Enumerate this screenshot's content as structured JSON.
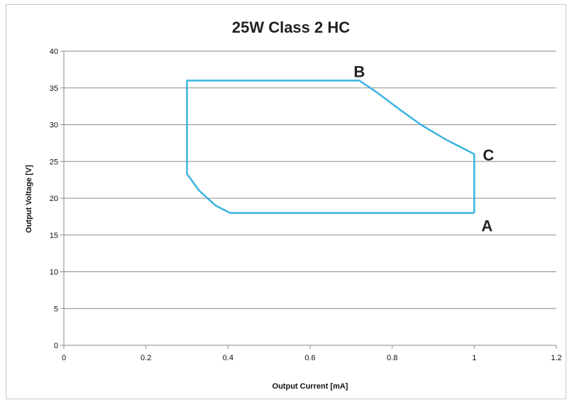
{
  "chart_data": {
    "type": "line",
    "title": "25W Class 2 HC",
    "xlabel": "Output Current [mA]",
    "ylabel": "Output Voltage [V]",
    "xlim": [
      0,
      1.2
    ],
    "ylim": [
      0,
      40
    ],
    "x_ticks": [
      "0",
      "0.2",
      "0.4",
      "0.6",
      "0.8",
      "1",
      "1.2"
    ],
    "y_ticks": [
      "0",
      "5",
      "10",
      "15",
      "20",
      "25",
      "30",
      "35",
      "40"
    ],
    "grid": "horizontal",
    "series": [
      {
        "color": "#3ab4e0",
        "points": [
          [
            1.0,
            18
          ],
          [
            1.0,
            26
          ],
          [
            0.93,
            28
          ],
          [
            0.87,
            30
          ],
          [
            0.82,
            32
          ],
          [
            0.76,
            34.5
          ],
          [
            0.72,
            36
          ],
          [
            0.3,
            36
          ],
          [
            0.3,
            23.3
          ],
          [
            0.33,
            21
          ],
          [
            0.37,
            19
          ],
          [
            0.405,
            18
          ],
          [
            1.0,
            18
          ]
        ]
      }
    ],
    "annotations": [
      {
        "text": "B",
        "x": 0.72,
        "y": 36
      },
      {
        "text": "C",
        "x": 1.0,
        "y": 26
      },
      {
        "text": "A",
        "x": 1.0,
        "y": 18
      }
    ]
  }
}
